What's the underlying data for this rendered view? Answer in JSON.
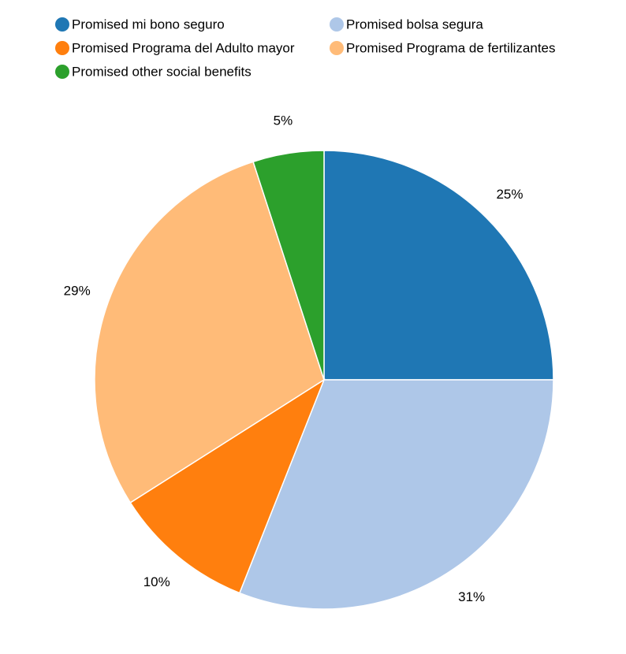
{
  "chart_data": {
    "type": "pie",
    "title": "",
    "legend_placement": "top",
    "start_angle_deg": 0,
    "direction": "clockwise",
    "slices": [
      {
        "name": "Promised mi bono seguro",
        "value": 25,
        "label": "25%",
        "color": "#1f77b4"
      },
      {
        "name": "Promised bolsa segura",
        "value": 31,
        "label": "31%",
        "color": "#aec7e8"
      },
      {
        "name": "Promised Programa del Adulto mayor",
        "value": 10,
        "label": "10%",
        "color": "#ff7f0e"
      },
      {
        "name": "Promised Programa de fertilizantes",
        "value": 29,
        "label": "29%",
        "color": "#ffbb78"
      },
      {
        "name": "Promised other social benefits",
        "value": 5,
        "label": "5%",
        "color": "#2ca02c"
      }
    ]
  }
}
